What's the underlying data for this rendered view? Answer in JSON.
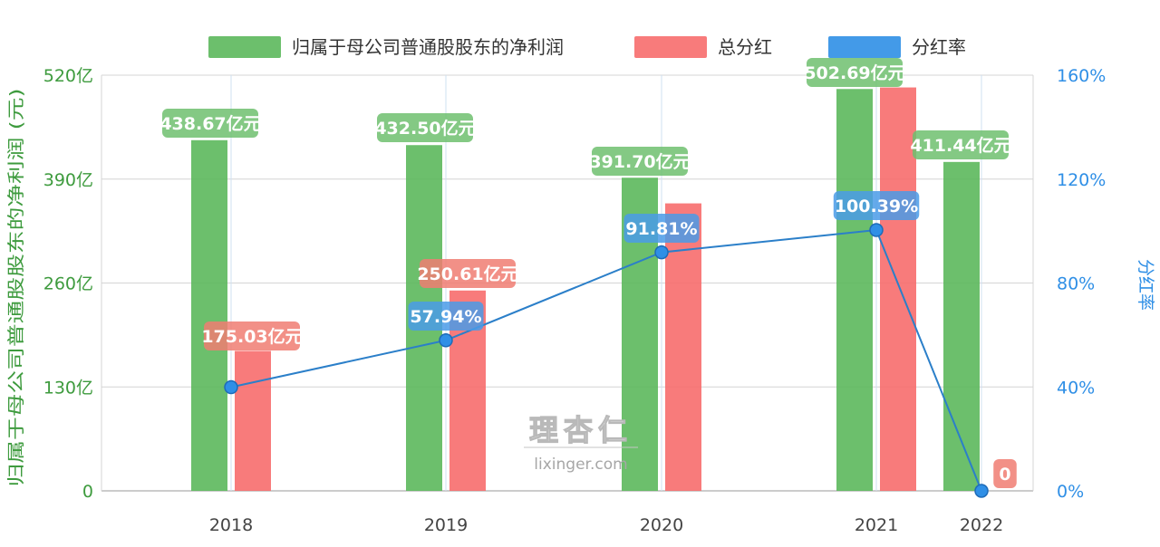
{
  "chart_data": {
    "type": "bar",
    "categories": [
      "2018",
      "2019",
      "2020",
      "2021",
      "2022"
    ],
    "series": [
      {
        "name": "归属于母公司普通股股东的净利润",
        "type": "bar",
        "axis": "left",
        "color": "#5cb85c",
        "values": [
          438.67,
          432.5,
          391.7,
          502.69,
          411.44
        ],
        "labels": [
          "438.67亿元",
          "432.50亿元",
          "391.70亿元",
          "502.69亿元",
          "411.44亿元"
        ]
      },
      {
        "name": "总分红",
        "type": "bar",
        "axis": "left",
        "color": "#f76d6d",
        "values": [
          175.03,
          250.61,
          359.62,
          504.64,
          null
        ],
        "labels": [
          "175.03亿元",
          "250.61亿元",
          "",
          "",
          ""
        ]
      },
      {
        "name": "分红率",
        "type": "line",
        "axis": "right",
        "color": "#2f8fe6",
        "values": [
          39.9,
          57.94,
          91.81,
          100.39,
          0
        ],
        "labels": [
          "",
          "57.94%",
          "91.81%",
          "100.39%",
          "0"
        ]
      }
    ],
    "y_left": {
      "label": "归属于母公司普通股股东的净利润 (元)",
      "range": [
        0,
        520
      ],
      "ticks": [
        "0",
        "130亿",
        "260亿",
        "390亿",
        "520亿"
      ]
    },
    "y_right": {
      "label": "分红率",
      "range": [
        0,
        160
      ],
      "ticks": [
        "0%",
        "40%",
        "80%",
        "120%",
        "160%"
      ]
    },
    "legend_position": "top-center",
    "grid": true,
    "watermark": {
      "logo_text": "理杏仁",
      "url": "lixinger.com"
    }
  }
}
